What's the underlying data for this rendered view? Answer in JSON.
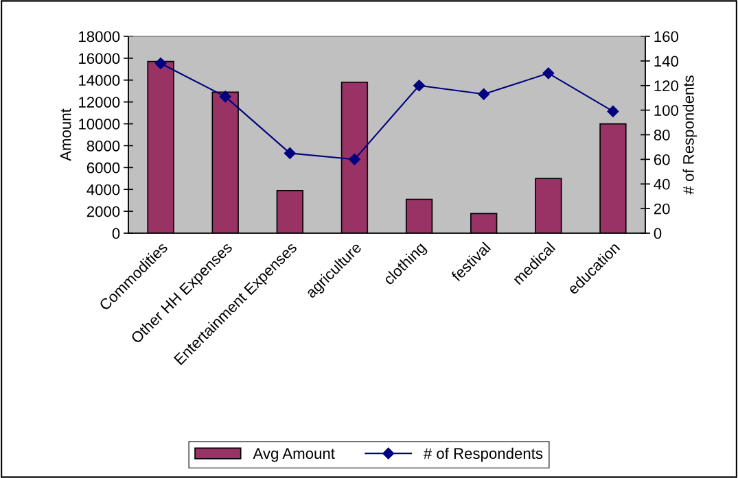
{
  "chart_data": {
    "type": "bar",
    "ylabel": "Amount",
    "y2label": "# of Respondents",
    "categories": [
      "Commodities",
      "Other HH Expenses",
      "Entertainment Expenses",
      "agriculture",
      "clothing",
      "festival",
      "medical",
      "education"
    ],
    "series": [
      {
        "name": "Avg Amount",
        "color": "#993366",
        "values": [
          15700,
          12900,
          3900,
          13800,
          3100,
          1800,
          5000,
          10000
        ]
      },
      {
        "name": "# of Respondents",
        "type": "line",
        "axis": "y2",
        "color": "#000080",
        "marker": "diamond",
        "values": [
          138,
          111,
          65,
          60,
          120,
          113,
          130,
          99
        ]
      }
    ],
    "ylim": [
      0,
      18000
    ],
    "yticks": [
      0,
      2000,
      4000,
      6000,
      8000,
      10000,
      12000,
      14000,
      16000,
      18000
    ],
    "y2lim": [
      0,
      160
    ],
    "y2ticks": [
      0,
      20,
      40,
      60,
      80,
      100,
      120,
      140,
      160
    ],
    "grid": false,
    "legend": "bottom"
  }
}
